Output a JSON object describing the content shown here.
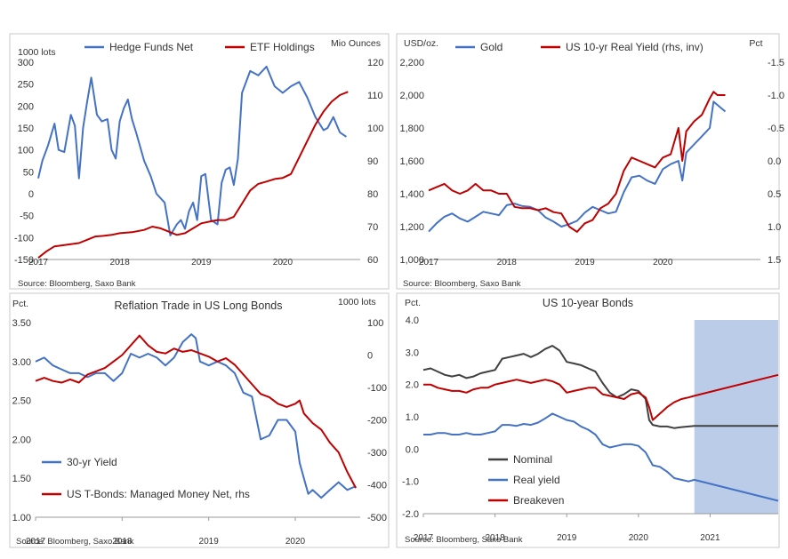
{
  "colors": {
    "blue": "#4472c4",
    "red": "#c00000",
    "dark": "#404040",
    "band": "#b4c7e7",
    "frame": "#c8c8c8",
    "grid": "#e6e6e6"
  },
  "chart_data": [
    {
      "type": "line",
      "title": "",
      "left_unit": "1000 lots",
      "right_unit": "Mio Ounces",
      "legend": [
        "Hedge Funds Net",
        "ETF Holdings"
      ],
      "legend_placement": "top",
      "ylim_left": [
        -150,
        300
      ],
      "yticks_left": [
        "300",
        "250",
        "200",
        "150",
        "100",
        "50",
        "0",
        "-50",
        "-100",
        "-150"
      ],
      "ylim_right": [
        60,
        120
      ],
      "yticks_right": [
        "120",
        "110",
        "100",
        "90",
        "80",
        "70",
        "60"
      ],
      "xlim": [
        2017.0,
        2020.95
      ],
      "xticks": [
        "2017",
        "2018",
        "2019",
        "2020"
      ],
      "source": "Source: Bloomberg, Saxo Bank",
      "series": [
        {
          "name": "Hedge Funds Net",
          "axis": "left",
          "color": "blue",
          "x": [
            2017.0,
            2017.05,
            2017.12,
            2017.2,
            2017.25,
            2017.32,
            2017.4,
            2017.45,
            2017.5,
            2017.55,
            2017.6,
            2017.65,
            2017.72,
            2017.78,
            2017.85,
            2017.9,
            2017.95,
            2018.0,
            2018.05,
            2018.1,
            2018.15,
            2018.2,
            2018.3,
            2018.38,
            2018.45,
            2018.55,
            2018.62,
            2018.7,
            2018.75,
            2018.8,
            2018.85,
            2018.9,
            2018.95,
            2019.0,
            2019.05,
            2019.12,
            2019.2,
            2019.25,
            2019.3,
            2019.35,
            2019.4,
            2019.45,
            2019.5,
            2019.6,
            2019.7,
            2019.8,
            2019.9,
            2020.0,
            2020.1,
            2020.2,
            2020.3,
            2020.4,
            2020.5,
            2020.55,
            2020.62,
            2020.7,
            2020.78
          ],
          "y": [
            35,
            75,
            110,
            160,
            100,
            95,
            180,
            155,
            35,
            150,
            210,
            265,
            180,
            165,
            170,
            100,
            80,
            165,
            195,
            215,
            170,
            140,
            75,
            40,
            0,
            -20,
            -95,
            -70,
            -60,
            -80,
            -40,
            -20,
            -60,
            40,
            45,
            -60,
            -70,
            25,
            55,
            60,
            20,
            80,
            230,
            280,
            270,
            290,
            245,
            230,
            245,
            255,
            220,
            175,
            145,
            150,
            175,
            140,
            130
          ]
        },
        {
          "name": "ETF Holdings",
          "axis": "right",
          "color": "red",
          "x": [
            2017.0,
            2017.1,
            2017.2,
            2017.35,
            2017.5,
            2017.6,
            2017.7,
            2017.8,
            2017.9,
            2018.0,
            2018.15,
            2018.3,
            2018.4,
            2018.5,
            2018.6,
            2018.7,
            2018.8,
            2018.9,
            2019.0,
            2019.1,
            2019.2,
            2019.3,
            2019.4,
            2019.5,
            2019.6,
            2019.7,
            2019.8,
            2019.9,
            2020.0,
            2020.1,
            2020.2,
            2020.3,
            2020.4,
            2020.5,
            2020.6,
            2020.7,
            2020.8
          ],
          "y": [
            60.5,
            62.5,
            64,
            64.5,
            65,
            66,
            67,
            67.2,
            67.5,
            68,
            68.3,
            69,
            70,
            69.5,
            68.5,
            67.5,
            68,
            69.5,
            71,
            71.5,
            72,
            72,
            73,
            77,
            81,
            83,
            83.7,
            84.5,
            84.8,
            86,
            91,
            96,
            101,
            105,
            108,
            110,
            111
          ]
        }
      ]
    },
    {
      "type": "line",
      "title": "",
      "left_unit": "USD/oz.",
      "right_unit": "Pct",
      "legend": [
        "Gold",
        "US 10-yr Real Yield (rhs, inv)"
      ],
      "legend_placement": "top",
      "ylim_left": [
        1000,
        2200
      ],
      "yticks_left": [
        "2,200",
        "2,000",
        "1,800",
        "1,600",
        "1,400",
        "1,200",
        "1,000"
      ],
      "ylim_right": [
        -1.5,
        1.5
      ],
      "yticks_right": [
        "-1.5",
        "-1.0",
        "-0.5",
        "0.0",
        "0.5",
        "1.0",
        "1.5"
      ],
      "right_inverted": true,
      "xlim": [
        2017.0,
        2021.25
      ],
      "xticks": [
        "2017",
        "2018",
        "2019",
        "2020"
      ],
      "source": "Source: Bloomberg, Saxo Bank",
      "series": [
        {
          "name": "Gold",
          "axis": "left",
          "color": "blue",
          "x": [
            2017.0,
            2017.1,
            2017.2,
            2017.3,
            2017.4,
            2017.5,
            2017.6,
            2017.7,
            2017.8,
            2017.9,
            2018.0,
            2018.1,
            2018.2,
            2018.3,
            2018.4,
            2018.5,
            2018.6,
            2018.7,
            2018.8,
            2018.9,
            2019.0,
            2019.1,
            2019.2,
            2019.3,
            2019.4,
            2019.5,
            2019.6,
            2019.7,
            2019.8,
            2019.9,
            2020.0,
            2020.1,
            2020.2,
            2020.25,
            2020.3,
            2020.4,
            2020.5,
            2020.6,
            2020.65,
            2020.7,
            2020.8
          ],
          "y": [
            1170,
            1220,
            1260,
            1280,
            1250,
            1230,
            1260,
            1290,
            1280,
            1270,
            1330,
            1340,
            1325,
            1320,
            1300,
            1255,
            1230,
            1200,
            1215,
            1235,
            1285,
            1320,
            1300,
            1280,
            1290,
            1410,
            1500,
            1510,
            1480,
            1460,
            1550,
            1580,
            1600,
            1480,
            1650,
            1700,
            1750,
            1800,
            1960,
            1940,
            1900
          ]
        },
        {
          "name": "US 10-yr Real Yield (rhs, inv)",
          "axis": "right",
          "color": "red",
          "x": [
            2017.0,
            2017.1,
            2017.2,
            2017.3,
            2017.4,
            2017.5,
            2017.6,
            2017.7,
            2017.8,
            2017.9,
            2018.0,
            2018.1,
            2018.2,
            2018.3,
            2018.4,
            2018.5,
            2018.6,
            2018.7,
            2018.8,
            2018.9,
            2019.0,
            2019.1,
            2019.2,
            2019.3,
            2019.4,
            2019.5,
            2019.6,
            2019.7,
            2019.8,
            2019.9,
            2020.0,
            2020.1,
            2020.2,
            2020.25,
            2020.3,
            2020.4,
            2020.5,
            2020.6,
            2020.65,
            2020.7,
            2020.8
          ],
          "y": [
            0.45,
            0.4,
            0.35,
            0.45,
            0.5,
            0.45,
            0.35,
            0.45,
            0.45,
            0.5,
            0.5,
            0.7,
            0.72,
            0.72,
            0.75,
            0.72,
            0.78,
            0.8,
            1.0,
            1.08,
            0.95,
            0.9,
            0.72,
            0.65,
            0.5,
            0.15,
            -0.05,
            0.0,
            0.05,
            0.1,
            -0.05,
            -0.1,
            -0.5,
            0.0,
            -0.45,
            -0.6,
            -0.7,
            -0.95,
            -1.05,
            -1.0,
            -1.0
          ]
        }
      ]
    },
    {
      "type": "line",
      "title": "Reflation Trade in US Long Bonds",
      "left_unit": "Pct.",
      "right_unit": "1000 lots",
      "legend": [
        "30-yr Yield",
        "US T-Bonds: Managed Money Net, rhs"
      ],
      "legend_placement": "bottom-left",
      "ylim_left": [
        1.0,
        3.5
      ],
      "yticks_left": [
        "3.50",
        "3.00",
        "2.50",
        "2.00",
        "1.50",
        "1.00"
      ],
      "ylim_right": [
        -500,
        100
      ],
      "yticks_right": [
        "100",
        "0",
        "-100",
        "-200",
        "-300",
        "-400",
        "-500"
      ],
      "xlim": [
        2017.0,
        2020.75
      ],
      "xticks": [
        "2017",
        "2018",
        "2019",
        "2020"
      ],
      "source": "Source: Bloomberg, Saxo Bank",
      "series": [
        {
          "name": "30-yr Yield",
          "axis": "left",
          "color": "blue",
          "x": [
            2017.0,
            2017.1,
            2017.2,
            2017.3,
            2017.4,
            2017.5,
            2017.6,
            2017.7,
            2017.8,
            2017.9,
            2018.0,
            2018.1,
            2018.2,
            2018.3,
            2018.4,
            2018.5,
            2018.6,
            2018.7,
            2018.8,
            2018.85,
            2018.9,
            2019.0,
            2019.1,
            2019.2,
            2019.3,
            2019.4,
            2019.5,
            2019.6,
            2019.7,
            2019.8,
            2019.9,
            2020.0,
            2020.05,
            2020.1,
            2020.15,
            2020.2,
            2020.3,
            2020.4,
            2020.5,
            2020.6,
            2020.7
          ],
          "y": [
            3.0,
            3.05,
            2.95,
            2.9,
            2.85,
            2.85,
            2.8,
            2.85,
            2.85,
            2.75,
            2.85,
            3.1,
            3.05,
            3.1,
            3.05,
            2.95,
            3.05,
            3.25,
            3.35,
            3.3,
            3.0,
            2.95,
            3.0,
            2.95,
            2.85,
            2.6,
            2.55,
            2.0,
            2.05,
            2.25,
            2.25,
            2.1,
            1.7,
            1.5,
            1.3,
            1.35,
            1.25,
            1.35,
            1.45,
            1.35,
            1.4
          ]
        },
        {
          "name": "US T-Bonds: Managed Money Net, rhs",
          "axis": "right",
          "color": "red",
          "x": [
            2017.0,
            2017.1,
            2017.2,
            2017.3,
            2017.4,
            2017.5,
            2017.6,
            2017.7,
            2017.8,
            2017.9,
            2018.0,
            2018.1,
            2018.2,
            2018.3,
            2018.4,
            2018.5,
            2018.6,
            2018.7,
            2018.8,
            2018.9,
            2019.0,
            2019.1,
            2019.2,
            2019.3,
            2019.4,
            2019.5,
            2019.6,
            2019.7,
            2019.8,
            2019.9,
            2020.0,
            2020.05,
            2020.1,
            2020.2,
            2020.3,
            2020.4,
            2020.5,
            2020.6,
            2020.7
          ],
          "y": [
            -80,
            -70,
            -80,
            -85,
            -75,
            -85,
            -60,
            -50,
            -40,
            -20,
            0,
            30,
            60,
            30,
            10,
            5,
            20,
            10,
            15,
            5,
            -5,
            -20,
            -10,
            -30,
            -60,
            -90,
            -120,
            -130,
            -150,
            -160,
            -150,
            -140,
            -180,
            -210,
            -230,
            -270,
            -300,
            -360,
            -410
          ]
        }
      ]
    },
    {
      "type": "line",
      "title": "US 10-year Bonds",
      "left_unit": "Pct.",
      "legend": [
        "Nominal",
        "Real yield",
        "Breakeven"
      ],
      "legend_placement": "bottom-left",
      "ylim_left": [
        -2.0,
        4.0
      ],
      "yticks_left": [
        "4.0",
        "3.0",
        "2.0",
        "1.0",
        "0.0",
        "-1.0",
        "-2.0"
      ],
      "xlim": [
        2017.0,
        2021.95
      ],
      "xticks": [
        "2017",
        "2018",
        "2019",
        "2020",
        "2021"
      ],
      "forecast_band": [
        2020.78,
        2021.95
      ],
      "source": "Source: Bloomberg, Saxo Bank",
      "series": [
        {
          "name": "Nominal",
          "axis": "left",
          "color": "dark",
          "x": [
            2017.0,
            2017.1,
            2017.2,
            2017.3,
            2017.4,
            2017.5,
            2017.6,
            2017.7,
            2017.8,
            2017.9,
            2018.0,
            2018.1,
            2018.2,
            2018.3,
            2018.4,
            2018.5,
            2018.6,
            2018.7,
            2018.8,
            2018.9,
            2019.0,
            2019.1,
            2019.2,
            2019.3,
            2019.4,
            2019.5,
            2019.6,
            2019.7,
            2019.8,
            2019.9,
            2020.0,
            2020.1,
            2020.15,
            2020.2,
            2020.3,
            2020.4,
            2020.5,
            2020.6,
            2020.7,
            2020.78,
            2021.95
          ],
          "y": [
            2.45,
            2.5,
            2.4,
            2.3,
            2.25,
            2.3,
            2.2,
            2.25,
            2.35,
            2.4,
            2.45,
            2.8,
            2.85,
            2.9,
            2.95,
            2.85,
            2.95,
            3.1,
            3.2,
            3.05,
            2.7,
            2.65,
            2.6,
            2.5,
            2.4,
            2.05,
            1.75,
            1.6,
            1.7,
            1.85,
            1.8,
            1.55,
            0.9,
            0.75,
            0.7,
            0.7,
            0.65,
            0.68,
            0.7,
            0.72,
            0.72
          ]
        },
        {
          "name": "Real yield",
          "axis": "left",
          "color": "blue",
          "x": [
            2017.0,
            2017.1,
            2017.2,
            2017.3,
            2017.4,
            2017.5,
            2017.6,
            2017.7,
            2017.8,
            2017.9,
            2018.0,
            2018.1,
            2018.2,
            2018.3,
            2018.4,
            2018.5,
            2018.6,
            2018.7,
            2018.8,
            2018.9,
            2019.0,
            2019.1,
            2019.2,
            2019.3,
            2019.4,
            2019.5,
            2019.6,
            2019.7,
            2019.8,
            2019.9,
            2020.0,
            2020.1,
            2020.2,
            2020.3,
            2020.4,
            2020.5,
            2020.6,
            2020.7,
            2020.78,
            2021.95
          ],
          "y": [
            0.45,
            0.45,
            0.5,
            0.5,
            0.45,
            0.45,
            0.5,
            0.45,
            0.45,
            0.5,
            0.55,
            0.75,
            0.75,
            0.72,
            0.78,
            0.75,
            0.82,
            0.95,
            1.1,
            1.0,
            0.9,
            0.85,
            0.7,
            0.6,
            0.45,
            0.15,
            0.05,
            0.1,
            0.15,
            0.15,
            0.1,
            -0.1,
            -0.5,
            -0.55,
            -0.7,
            -0.9,
            -0.95,
            -1.0,
            -0.95,
            -1.6
          ]
        },
        {
          "name": "Breakeven",
          "axis": "left",
          "color": "red",
          "x": [
            2017.0,
            2017.1,
            2017.2,
            2017.3,
            2017.4,
            2017.5,
            2017.6,
            2017.7,
            2017.8,
            2017.9,
            2018.0,
            2018.1,
            2018.2,
            2018.3,
            2018.4,
            2018.5,
            2018.6,
            2018.7,
            2018.8,
            2018.9,
            2019.0,
            2019.1,
            2019.2,
            2019.3,
            2019.4,
            2019.5,
            2019.6,
            2019.7,
            2019.8,
            2019.9,
            2020.0,
            2020.1,
            2020.15,
            2020.2,
            2020.3,
            2020.4,
            2020.5,
            2020.6,
            2020.7,
            2020.78,
            2021.95
          ],
          "y": [
            2.0,
            2.0,
            1.9,
            1.85,
            1.8,
            1.8,
            1.75,
            1.85,
            1.9,
            1.9,
            2.0,
            2.05,
            2.1,
            2.15,
            2.1,
            2.05,
            2.1,
            2.15,
            2.1,
            2.0,
            1.75,
            1.8,
            1.85,
            1.9,
            1.9,
            1.7,
            1.65,
            1.6,
            1.55,
            1.7,
            1.75,
            1.6,
            1.3,
            0.9,
            1.1,
            1.3,
            1.45,
            1.55,
            1.6,
            1.65,
            2.3
          ]
        }
      ]
    }
  ]
}
